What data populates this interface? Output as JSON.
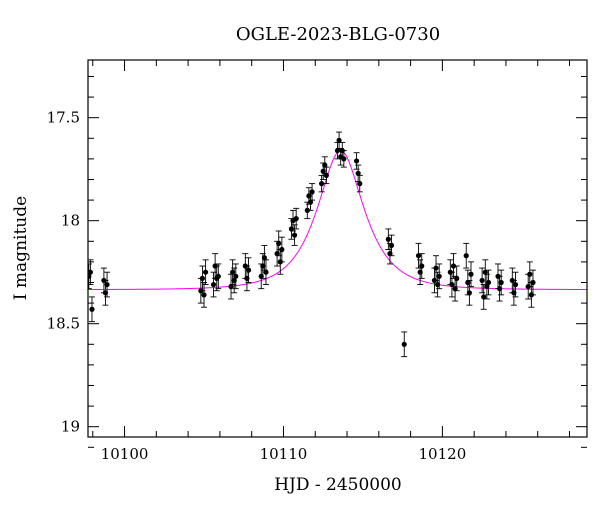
{
  "chart_data": {
    "type": "scatter",
    "title": "OGLE-2023-BLG-0730",
    "xlabel": "HJD - 2450000",
    "ylabel": "I magnitude",
    "xlim": [
      10097.7,
      10129.1
    ],
    "ylim": [
      19.05,
      17.22
    ],
    "y_inverted": true,
    "xticks": [
      10100,
      10110,
      10120
    ],
    "yticks": [
      17.5,
      18,
      18.5,
      19
    ],
    "ytick_labels": [
      "17.5",
      "18",
      "18.5",
      "19"
    ],
    "grid": false,
    "colors": {
      "points": "#000000",
      "model": "#ff00ff"
    },
    "model": {
      "name": "microlensing model",
      "t0": 10113.6,
      "peak_mag": 17.66,
      "baseline_mag": 18.335,
      "tE": 2.3
    },
    "series": [
      {
        "points": [
          [
            10097.75,
            18.27,
            0.06
          ],
          [
            10097.85,
            18.25,
            0.06
          ],
          [
            10097.95,
            18.43,
            0.06
          ],
          [
            10098.7,
            18.29,
            0.06
          ],
          [
            10098.8,
            18.35,
            0.06
          ],
          [
            10098.9,
            18.31,
            0.06
          ],
          [
            10104.8,
            18.34,
            0.06
          ],
          [
            10104.9,
            18.28,
            0.06
          ],
          [
            10105.0,
            18.36,
            0.06
          ],
          [
            10105.1,
            18.25,
            0.06
          ],
          [
            10105.6,
            18.31,
            0.06
          ],
          [
            10105.7,
            18.22,
            0.06
          ],
          [
            10105.8,
            18.28,
            0.06
          ],
          [
            10105.9,
            18.27,
            0.06
          ],
          [
            10106.7,
            18.32,
            0.06
          ],
          [
            10106.8,
            18.25,
            0.06
          ],
          [
            10106.9,
            18.29,
            0.06
          ],
          [
            10107.0,
            18.27,
            0.06
          ],
          [
            10107.6,
            18.22,
            0.06
          ],
          [
            10107.7,
            18.28,
            0.06
          ],
          [
            10107.8,
            18.24,
            0.06
          ],
          [
            10108.6,
            18.27,
            0.06
          ],
          [
            10108.7,
            18.22,
            0.06
          ],
          [
            10108.8,
            18.18,
            0.06
          ],
          [
            10108.9,
            18.25,
            0.06
          ],
          [
            10109.6,
            18.16,
            0.06
          ],
          [
            10109.7,
            18.11,
            0.06
          ],
          [
            10109.8,
            18.2,
            0.06
          ],
          [
            10109.9,
            18.14,
            0.06
          ],
          [
            10110.5,
            18.04,
            0.05
          ],
          [
            10110.6,
            18.0,
            0.05
          ],
          [
            10110.7,
            18.07,
            0.05
          ],
          [
            10110.8,
            17.99,
            0.05
          ],
          [
            10111.5,
            17.95,
            0.04
          ],
          [
            10111.6,
            17.88,
            0.04
          ],
          [
            10111.7,
            17.91,
            0.04
          ],
          [
            10111.8,
            17.86,
            0.04
          ],
          [
            10112.4,
            17.82,
            0.04
          ],
          [
            10112.5,
            17.76,
            0.04
          ],
          [
            10112.6,
            17.73,
            0.04
          ],
          [
            10112.7,
            17.78,
            0.04
          ],
          [
            10113.4,
            17.66,
            0.04
          ],
          [
            10113.5,
            17.61,
            0.04
          ],
          [
            10113.6,
            17.69,
            0.04
          ],
          [
            10113.7,
            17.66,
            0.04
          ],
          [
            10113.8,
            17.7,
            0.04
          ],
          [
            10114.6,
            17.71,
            0.04
          ],
          [
            10114.7,
            17.77,
            0.04
          ],
          [
            10114.8,
            17.82,
            0.04
          ],
          [
            10116.6,
            18.09,
            0.05
          ],
          [
            10116.7,
            18.16,
            0.05
          ],
          [
            10116.8,
            18.12,
            0.05
          ],
          [
            10117.6,
            18.6,
            0.06
          ],
          [
            10118.5,
            18.17,
            0.06
          ],
          [
            10118.6,
            18.25,
            0.06
          ],
          [
            10118.7,
            18.22,
            0.06
          ],
          [
            10119.5,
            18.29,
            0.06
          ],
          [
            10119.6,
            18.23,
            0.06
          ],
          [
            10119.7,
            18.31,
            0.06
          ],
          [
            10119.8,
            18.27,
            0.06
          ],
          [
            10120.5,
            18.25,
            0.06
          ],
          [
            10120.6,
            18.31,
            0.06
          ],
          [
            10120.7,
            18.22,
            0.06
          ],
          [
            10120.8,
            18.33,
            0.06
          ],
          [
            10120.9,
            18.28,
            0.06
          ],
          [
            10121.5,
            18.17,
            0.06
          ],
          [
            10121.6,
            18.3,
            0.06
          ],
          [
            10121.7,
            18.35,
            0.06
          ],
          [
            10121.8,
            18.26,
            0.06
          ],
          [
            10122.5,
            18.29,
            0.06
          ],
          [
            10122.6,
            18.37,
            0.06
          ],
          [
            10122.7,
            18.25,
            0.06
          ],
          [
            10122.8,
            18.32,
            0.06
          ],
          [
            10122.9,
            18.3,
            0.06
          ],
          [
            10123.5,
            18.27,
            0.06
          ],
          [
            10123.6,
            18.33,
            0.06
          ],
          [
            10123.7,
            18.3,
            0.06
          ],
          [
            10124.4,
            18.29,
            0.06
          ],
          [
            10124.5,
            18.35,
            0.06
          ],
          [
            10124.6,
            18.31,
            0.06
          ],
          [
            10125.4,
            18.32,
            0.06
          ],
          [
            10125.5,
            18.26,
            0.06
          ],
          [
            10125.6,
            18.36,
            0.06
          ],
          [
            10125.7,
            18.3,
            0.06
          ]
        ]
      }
    ]
  }
}
